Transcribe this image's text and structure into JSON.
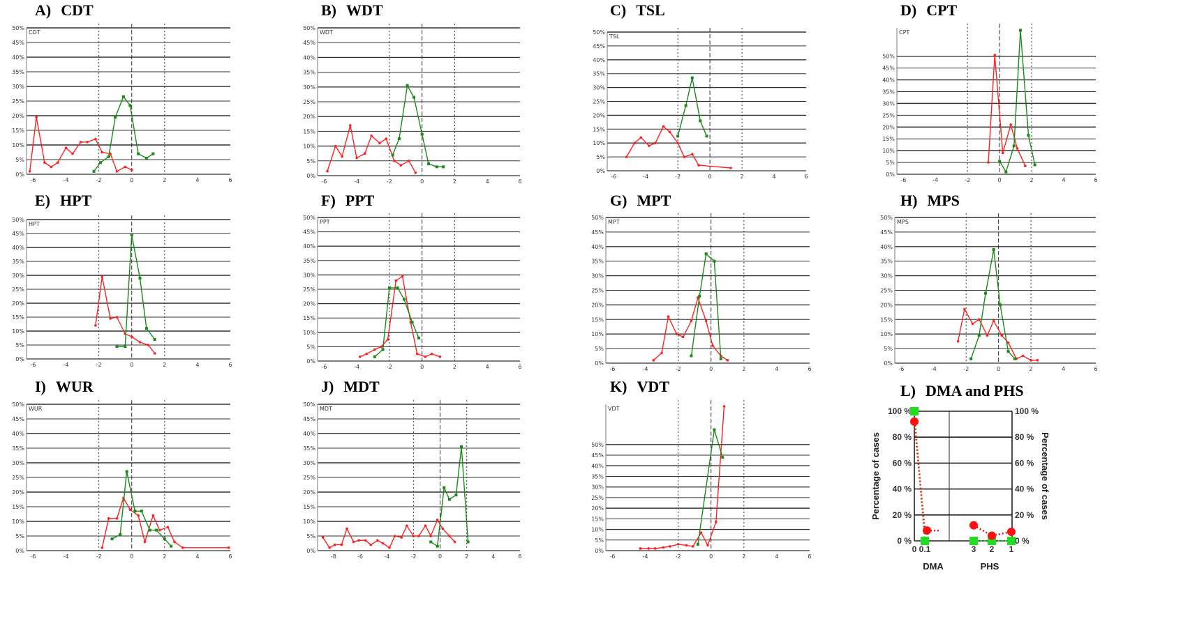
{
  "colors": {
    "patients": "#ff2020",
    "controls": "#1a8a1a",
    "l_green": "#22dd22",
    "l_red": "#ff1010"
  },
  "panels": [
    {
      "label": "A)",
      "title": "CDT",
      "inner": "CDT",
      "red": [
        [
          -6.2,
          1
        ],
        [
          -5.8,
          19.5
        ],
        [
          -5.3,
          4
        ],
        [
          -4.9,
          2.5
        ],
        [
          -4.5,
          4
        ],
        [
          -4,
          9
        ],
        [
          -3.6,
          7
        ],
        [
          -3.1,
          11
        ],
        [
          -2.7,
          11
        ],
        [
          -2.2,
          12
        ],
        [
          -1.8,
          7.5
        ],
        [
          -1.3,
          7
        ],
        [
          -0.9,
          1
        ],
        [
          -0.4,
          2.5
        ],
        [
          0,
          1.5
        ]
      ],
      "green": [
        [
          -2.3,
          1
        ],
        [
          -1.9,
          4
        ],
        [
          -1.4,
          6
        ],
        [
          -1,
          19.5
        ],
        [
          -0.5,
          26.5
        ],
        [
          -0.1,
          23.5
        ],
        [
          0.4,
          7
        ],
        [
          0.9,
          5.5
        ],
        [
          1.3,
          7
        ]
      ]
    },
    {
      "label": "B)",
      "title": "WDT",
      "inner": "WDT",
      "red": [
        [
          -5.8,
          1.5
        ],
        [
          -5.3,
          10
        ],
        [
          -4.9,
          6.5
        ],
        [
          -4.4,
          17
        ],
        [
          -4,
          6
        ],
        [
          -3.5,
          7.5
        ],
        [
          -3.1,
          13.5
        ],
        [
          -2.6,
          11
        ],
        [
          -2.2,
          12.5
        ],
        [
          -1.7,
          5
        ],
        [
          -1.3,
          3.5
        ],
        [
          -0.8,
          5
        ],
        [
          -0.4,
          1
        ]
      ],
      "green": [
        [
          -1.8,
          7
        ],
        [
          -1.4,
          12.5
        ],
        [
          -0.9,
          30.5
        ],
        [
          -0.5,
          26.5
        ],
        [
          0,
          14
        ],
        [
          0.4,
          4
        ],
        [
          0.9,
          3
        ],
        [
          1.3,
          3
        ]
      ]
    },
    {
      "label": "C)",
      "title": "TSL",
      "inner": "TSL",
      "red": [
        [
          -5.2,
          5
        ],
        [
          -4.7,
          10
        ],
        [
          -4.3,
          12
        ],
        [
          -3.8,
          9
        ],
        [
          -3.4,
          10
        ],
        [
          -2.9,
          16
        ],
        [
          -2.5,
          14
        ],
        [
          -2,
          10
        ],
        [
          -1.6,
          5
        ],
        [
          -1.1,
          6
        ],
        [
          -0.7,
          2
        ],
        [
          1.3,
          1
        ]
      ],
      "green": [
        [
          -2,
          12.5
        ],
        [
          -1.5,
          23.5
        ],
        [
          -1.1,
          33.5
        ],
        [
          -0.6,
          18
        ],
        [
          -0.2,
          12.5
        ]
      ]
    },
    {
      "label": "D)",
      "title": "CPT",
      "inner": "CPT",
      "red": [
        [
          -0.7,
          5
        ],
        [
          -0.3,
          50.5
        ],
        [
          0.2,
          9
        ],
        [
          0.7,
          21
        ],
        [
          1.1,
          11
        ],
        [
          1.6,
          3.5
        ]
      ],
      "green": [
        [
          0,
          5.5
        ],
        [
          0.4,
          1
        ],
        [
          0.9,
          12
        ],
        [
          1.3,
          61
        ],
        [
          1.8,
          16.5
        ],
        [
          2.2,
          4
        ]
      ]
    },
    {
      "label": "E)",
      "title": "HPT",
      "inner": "HPT",
      "red": [
        [
          -2.2,
          12
        ],
        [
          -1.8,
          29.5
        ],
        [
          -1.3,
          14.5
        ],
        [
          -0.9,
          15
        ],
        [
          -0.4,
          9
        ],
        [
          0,
          8
        ],
        [
          0.5,
          6
        ],
        [
          1,
          5
        ],
        [
          1.4,
          2
        ]
      ],
      "green": [
        [
          -0.9,
          4.5
        ],
        [
          -0.4,
          4.5
        ],
        [
          0,
          44.5
        ],
        [
          0.5,
          29
        ],
        [
          0.9,
          11
        ],
        [
          1.4,
          7
        ]
      ]
    },
    {
      "label": "F)",
      "title": "PPT",
      "inner": "PPT",
      "red": [
        [
          -3.8,
          1.5
        ],
        [
          -3.4,
          2.5
        ],
        [
          -2.9,
          4
        ],
        [
          -2.5,
          5
        ],
        [
          -2.1,
          7.5
        ],
        [
          -1.6,
          28
        ],
        [
          -1.2,
          29.5
        ],
        [
          -0.7,
          13.5
        ],
        [
          -0.3,
          2.5
        ],
        [
          0.2,
          1.5
        ],
        [
          0.6,
          2.5
        ],
        [
          1.1,
          1.5
        ]
      ],
      "green": [
        [
          -2.9,
          1.5
        ],
        [
          -2.4,
          4
        ],
        [
          -2,
          25.5
        ],
        [
          -1.5,
          25.5
        ],
        [
          -1.1,
          21.5
        ],
        [
          -0.6,
          13.5
        ],
        [
          -0.2,
          8
        ]
      ]
    },
    {
      "label": "G)",
      "title": "MPT",
      "inner": "MPT",
      "red": [
        [
          -3.5,
          1
        ],
        [
          -3,
          3.5
        ],
        [
          -2.6,
          16
        ],
        [
          -2.1,
          10
        ],
        [
          -1.7,
          9
        ],
        [
          -1.2,
          14.5
        ],
        [
          -0.8,
          22.5
        ],
        [
          -0.3,
          14.5
        ],
        [
          0.1,
          6
        ],
        [
          0.6,
          2.5
        ],
        [
          1,
          1
        ]
      ],
      "green": [
        [
          -1.2,
          2.5
        ],
        [
          -0.7,
          23
        ],
        [
          -0.3,
          37.5
        ],
        [
          0.2,
          35
        ],
        [
          0.6,
          1.5
        ]
      ]
    },
    {
      "label": "H)",
      "title": "MPS",
      "inner": "MPS",
      "red": [
        [
          -2.5,
          7.5
        ],
        [
          -2.1,
          18.5
        ],
        [
          -1.6,
          13.5
        ],
        [
          -1.2,
          15
        ],
        [
          -0.7,
          9.5
        ],
        [
          -0.3,
          14.5
        ],
        [
          0.2,
          9.5
        ],
        [
          0.6,
          7
        ],
        [
          1.1,
          1.5
        ],
        [
          1.5,
          2.5
        ],
        [
          2,
          1
        ],
        [
          2.4,
          1
        ]
      ],
      "green": [
        [
          -1.7,
          1.5
        ],
        [
          -1.2,
          9.5
        ],
        [
          -0.8,
          24
        ],
        [
          -0.3,
          39
        ],
        [
          0.1,
          20
        ],
        [
          0.6,
          4
        ],
        [
          1,
          1.5
        ]
      ]
    },
    {
      "label": "I)",
      "title": "WUR",
      "inner": "WUR",
      "red": [
        [
          -1.8,
          1
        ],
        [
          -1.4,
          11
        ],
        [
          -0.9,
          11
        ],
        [
          -0.5,
          18
        ],
        [
          -0.1,
          14
        ],
        [
          0.4,
          12
        ],
        [
          0.8,
          3
        ],
        [
          1.3,
          12
        ],
        [
          1.7,
          7
        ],
        [
          2.2,
          8
        ],
        [
          2.6,
          3
        ],
        [
          3.1,
          1
        ],
        [
          5.9,
          1
        ]
      ],
      "green": [
        [
          -1.2,
          4
        ],
        [
          -0.7,
          5.5
        ],
        [
          -0.3,
          27
        ],
        [
          0.2,
          13.5
        ],
        [
          0.6,
          13.5
        ],
        [
          1.1,
          7
        ],
        [
          1.5,
          7
        ],
        [
          2,
          4
        ],
        [
          2.4,
          1.5
        ]
      ]
    },
    {
      "label": "J)",
      "title": "MDT",
      "inner": "MDT",
      "red": [
        [
          -8.8,
          4.5
        ],
        [
          -8.3,
          1
        ],
        [
          -7.9,
          2
        ],
        [
          -7.4,
          2
        ],
        [
          -7,
          7.5
        ],
        [
          -6.5,
          3
        ],
        [
          -6.1,
          3.5
        ],
        [
          -5.6,
          3.5
        ],
        [
          -5.2,
          2
        ],
        [
          -4.7,
          3.5
        ],
        [
          -4.3,
          2.5
        ],
        [
          -3.8,
          1
        ],
        [
          -3.4,
          5
        ],
        [
          -2.9,
          4.5
        ],
        [
          -2.5,
          8.5
        ],
        [
          -2,
          5
        ],
        [
          -1.6,
          5
        ],
        [
          -1.1,
          8.5
        ],
        [
          -0.7,
          5
        ],
        [
          -0.2,
          10.5
        ],
        [
          0.2,
          7.5
        ],
        [
          0.7,
          5
        ],
        [
          1.1,
          3
        ]
      ],
      "green": [
        [
          -0.7,
          3
        ],
        [
          -0.2,
          1.5
        ],
        [
          0.3,
          21.5
        ],
        [
          0.7,
          17.5
        ],
        [
          1.2,
          19
        ],
        [
          1.6,
          35.5
        ],
        [
          2.1,
          3
        ]
      ]
    },
    {
      "label": "K)",
      "title": "VDT",
      "inner": "VDT",
      "red": [
        [
          -4.3,
          1
        ],
        [
          -3.8,
          1
        ],
        [
          -3.4,
          1
        ],
        [
          -2.9,
          1.5
        ],
        [
          -2.5,
          2
        ],
        [
          -2,
          3
        ],
        [
          -1.5,
          2.5
        ],
        [
          -1.1,
          2
        ],
        [
          -0.6,
          8.5
        ],
        [
          -0.2,
          2.5
        ],
        [
          0.3,
          13.5
        ],
        [
          0.8,
          68
        ]
      ],
      "green": [
        [
          -0.8,
          3
        ],
        [
          0.2,
          57
        ],
        [
          0.7,
          44
        ]
      ]
    }
  ],
  "axis_ticks": [
    "-6",
    "-4",
    "-2",
    "0",
    "2",
    "4",
    "6"
  ],
  "y_ticks": [
    "0%",
    "5%",
    "10%",
    "15%",
    "20%",
    "25%",
    "30%",
    "35%",
    "40%",
    "45%",
    "50%"
  ],
  "panel_l": {
    "label": "L)",
    "title": "DMA and PHS",
    "y_ticks": [
      "0 %",
      "20 %",
      "40 %",
      "60 %",
      "80 %",
      "100 %"
    ],
    "y_ticks_right": [
      "0 %",
      "20 %",
      "40 %",
      "60 %",
      "80 %",
      "100 %"
    ],
    "ylabel_left": "Percentage of cases",
    "ylabel_right": "Percentage of cases",
    "dma_ticks": [
      "0",
      "0.1"
    ],
    "phs_ticks": [
      "3",
      "2",
      "1"
    ],
    "xlabel_dma": "DMA",
    "xlabel_phs": "PHS",
    "dma_red": [
      92,
      8
    ],
    "dma_green": [
      100,
      0
    ],
    "phs_red": [
      12,
      4,
      7
    ],
    "phs_green": [
      0,
      0,
      0
    ]
  }
}
